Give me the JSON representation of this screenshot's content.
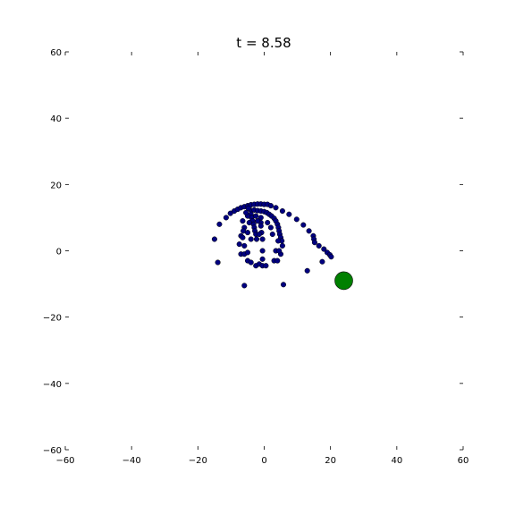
{
  "chart_data": {
    "type": "scatter",
    "title": "t = 8.58",
    "xlabel": "",
    "ylabel": "",
    "xlim": [
      -60,
      60
    ],
    "ylim": [
      -60,
      60
    ],
    "xticks": [
      "−60",
      "−40",
      "−20",
      "0",
      "20",
      "40",
      "60"
    ],
    "yticks": [
      "60",
      "40",
      "20",
      "0",
      "−20",
      "−40",
      "−60"
    ],
    "xtick_values": [
      -60,
      -40,
      -20,
      0,
      20,
      40,
      60
    ],
    "ytick_values": [
      60,
      40,
      20,
      0,
      -20,
      -40,
      -60
    ],
    "grid": false,
    "marker_color": "#000080",
    "highlight_color": "#008000",
    "points": [
      [
        -15.0,
        3.5
      ],
      [
        -13.5,
        8.0
      ],
      [
        -11.5,
        10.0
      ],
      [
        -10.2,
        11.3
      ],
      [
        -9.0,
        12.0
      ],
      [
        -8.0,
        12.5
      ],
      [
        -7.0,
        13.0
      ],
      [
        -6.0,
        13.3
      ],
      [
        -5.0,
        13.6
      ],
      [
        -4.0,
        13.9
      ],
      [
        -3.0,
        14.0
      ],
      [
        -2.0,
        14.1
      ],
      [
        -1.0,
        14.1
      ],
      [
        0.0,
        14.0
      ],
      [
        1.0,
        14.0
      ],
      [
        2.0,
        13.6
      ],
      [
        3.5,
        13.0
      ],
      [
        5.5,
        12.0
      ],
      [
        7.5,
        11.0
      ],
      [
        9.8,
        9.5
      ],
      [
        11.8,
        7.8
      ],
      [
        13.5,
        6.0
      ],
      [
        14.8,
        4.5
      ],
      [
        15.0,
        3.5
      ],
      [
        15.2,
        2.5
      ],
      [
        16.5,
        1.5
      ],
      [
        18.0,
        0.5
      ],
      [
        19.0,
        -0.5
      ],
      [
        19.8,
        -1.2
      ],
      [
        20.2,
        -1.8
      ],
      [
        -14.0,
        -3.5
      ],
      [
        -6.0,
        -10.5
      ],
      [
        5.8,
        -10.2
      ],
      [
        13.0,
        -6.0
      ],
      [
        17.5,
        -3.3
      ],
      [
        -4.0,
        12.2
      ],
      [
        -3.0,
        12.3
      ],
      [
        -2.0,
        12.1
      ],
      [
        -1.0,
        12.0
      ],
      [
        0.0,
        11.8
      ],
      [
        0.8,
        11.5
      ],
      [
        1.5,
        11.0
      ],
      [
        2.2,
        10.5
      ],
      [
        3.0,
        9.8
      ],
      [
        3.5,
        9.0
      ],
      [
        4.0,
        8.0
      ],
      [
        4.3,
        7.0
      ],
      [
        4.5,
        6.0
      ],
      [
        4.7,
        5.0
      ],
      [
        5.0,
        4.0
      ],
      [
        5.3,
        3.0
      ],
      [
        5.5,
        1.5
      ],
      [
        -4.0,
        11.0
      ],
      [
        -3.8,
        10.0
      ],
      [
        -3.5,
        9.0
      ],
      [
        -3.2,
        8.0
      ],
      [
        -3.0,
        7.0
      ],
      [
        -2.8,
        6.0
      ],
      [
        -2.5,
        5.0
      ],
      [
        -2.3,
        3.5
      ],
      [
        -6.5,
        9.0
      ],
      [
        -6.0,
        7.0
      ],
      [
        -6.3,
        6.0
      ],
      [
        -7.0,
        4.5
      ],
      [
        -6.5,
        4.0
      ],
      [
        -7.5,
        2.0
      ],
      [
        -6.0,
        1.5
      ],
      [
        -7.0,
        -1.0
      ],
      [
        -6.0,
        -1.0
      ],
      [
        -5.0,
        -0.5
      ],
      [
        -5.0,
        -3.0
      ],
      [
        -4.0,
        -3.5
      ],
      [
        -2.5,
        -4.5
      ],
      [
        -1.5,
        -4.0
      ],
      [
        -0.5,
        -4.5
      ],
      [
        0.5,
        -4.5
      ],
      [
        -0.5,
        -2.5
      ],
      [
        -0.5,
        0.0
      ],
      [
        3.0,
        -3.0
      ],
      [
        4.0,
        -3.0
      ],
      [
        3.5,
        0.0
      ],
      [
        5.0,
        -1.0
      ],
      [
        4.5,
        0.0
      ],
      [
        -1.0,
        10.0
      ],
      [
        -1.0,
        8.5
      ],
      [
        -1.0,
        7.5
      ],
      [
        -0.8,
        5.5
      ],
      [
        -0.5,
        3.5
      ],
      [
        1.0,
        8.5
      ],
      [
        2.0,
        7.0
      ],
      [
        2.5,
        5.0
      ],
      [
        4.2,
        3.0
      ],
      [
        -1.5,
        5.0
      ],
      [
        -2.0,
        9.0
      ],
      [
        -2.5,
        10.5
      ],
      [
        -5.0,
        10.5
      ],
      [
        -5.5,
        11.5
      ],
      [
        -4.8,
        12.8
      ],
      [
        -4.5,
        8.5
      ],
      [
        -5.0,
        5.5
      ],
      [
        -4.0,
        3.5
      ]
    ],
    "highlight_point": [
      24.0,
      -9.0
    ]
  }
}
